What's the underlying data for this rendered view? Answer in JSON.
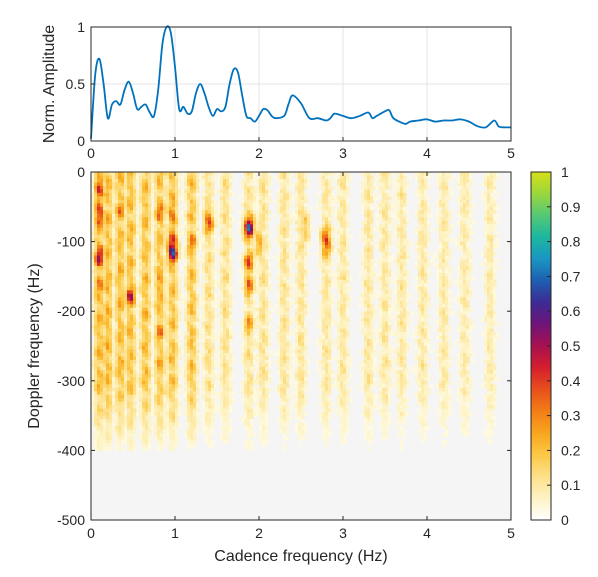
{
  "chart_data": [
    {
      "type": "line",
      "ylabel": "Norm. Amplitude",
      "xlabel": "",
      "xlim": [
        0,
        5
      ],
      "ylim": [
        0,
        1
      ],
      "x_ticks": [
        "0",
        "1",
        "2",
        "3",
        "4",
        "5"
      ],
      "y_ticks": [
        "0",
        "0.5",
        "1"
      ],
      "grid": true,
      "series": [
        {
          "color": "#0072bd",
          "x": [
            0,
            0.05,
            0.1,
            0.15,
            0.2,
            0.25,
            0.3,
            0.35,
            0.4,
            0.45,
            0.5,
            0.55,
            0.6,
            0.65,
            0.7,
            0.75,
            0.8,
            0.85,
            0.9,
            0.95,
            1.0,
            1.05,
            1.1,
            1.15,
            1.2,
            1.25,
            1.3,
            1.35,
            1.4,
            1.45,
            1.5,
            1.55,
            1.6,
            1.65,
            1.7,
            1.75,
            1.8,
            1.85,
            1.9,
            1.95,
            2.0,
            2.05,
            2.1,
            2.15,
            2.2,
            2.3,
            2.35,
            2.4,
            2.5,
            2.6,
            2.7,
            2.8,
            2.85,
            2.9,
            3.0,
            3.1,
            3.2,
            3.3,
            3.35,
            3.4,
            3.5,
            3.55,
            3.6,
            3.7,
            3.75,
            3.8,
            3.9,
            4.0,
            4.1,
            4.2,
            4.3,
            4.4,
            4.5,
            4.6,
            4.7,
            4.8,
            4.85,
            4.9,
            5.0
          ],
          "y": [
            0.02,
            0.58,
            0.72,
            0.5,
            0.2,
            0.32,
            0.35,
            0.32,
            0.45,
            0.52,
            0.42,
            0.28,
            0.3,
            0.32,
            0.25,
            0.22,
            0.45,
            0.85,
            1.0,
            0.95,
            0.65,
            0.28,
            0.3,
            0.24,
            0.26,
            0.42,
            0.5,
            0.42,
            0.3,
            0.22,
            0.28,
            0.26,
            0.3,
            0.5,
            0.63,
            0.6,
            0.4,
            0.22,
            0.2,
            0.17,
            0.22,
            0.28,
            0.27,
            0.22,
            0.2,
            0.22,
            0.32,
            0.4,
            0.33,
            0.2,
            0.2,
            0.18,
            0.2,
            0.24,
            0.22,
            0.2,
            0.22,
            0.25,
            0.2,
            0.22,
            0.26,
            0.27,
            0.2,
            0.16,
            0.15,
            0.17,
            0.18,
            0.19,
            0.17,
            0.18,
            0.18,
            0.19,
            0.17,
            0.13,
            0.12,
            0.18,
            0.13,
            0.12,
            0.12
          ]
        }
      ]
    },
    {
      "type": "heatmap",
      "xlabel": "Cadence frequency (Hz)",
      "ylabel": "Doppler frequency (Hz)",
      "xlim": [
        0,
        5
      ],
      "ylim": [
        -500,
        0
      ],
      "x_ticks": [
        "0",
        "1",
        "2",
        "3",
        "4",
        "5"
      ],
      "y_ticks": [
        "0",
        "-100",
        "-200",
        "-300",
        "-400",
        "-500"
      ],
      "colorbar": {
        "ticks": [
          "0",
          "0.1",
          "0.2",
          "0.3",
          "0.4",
          "0.5",
          "0.6",
          "0.7",
          "0.8",
          "0.9",
          "1"
        ],
        "range": [
          0,
          1
        ]
      },
      "colormap": [
        "#ffffff",
        "#fdf3c4",
        "#fde08a",
        "#fcc845",
        "#f9a51e",
        "#f27d16",
        "#e84f1c",
        "#d41e2e",
        "#a8114f",
        "#6f1479",
        "#3d2a94",
        "#1d5fb0",
        "#1a95c2",
        "#1cb79f",
        "#53c876",
        "#9ad73c",
        "#d6df19"
      ],
      "background_color": "#f5f5f5",
      "columns_hz": [
        0.1,
        0.2,
        0.35,
        0.47,
        0.65,
        0.82,
        0.97,
        1.2,
        1.4,
        1.6,
        1.88,
        2.05,
        2.3,
        2.5,
        2.8,
        3.0,
        3.3,
        3.5,
        3.7,
        3.95,
        4.2,
        4.45,
        4.75
      ],
      "hotspots": [
        {
          "x": 0.1,
          "y": -20,
          "value": 0.5
        },
        {
          "x": 0.1,
          "y": -60,
          "value": 0.55
        },
        {
          "x": 0.1,
          "y": -120,
          "value": 0.55
        },
        {
          "x": 0.1,
          "y": -160,
          "value": 0.35
        },
        {
          "x": 0.47,
          "y": -180,
          "value": 0.5
        },
        {
          "x": 0.35,
          "y": -55,
          "value": 0.35
        },
        {
          "x": 0.82,
          "y": -60,
          "value": 0.4
        },
        {
          "x": 0.82,
          "y": -160,
          "value": 0.35
        },
        {
          "x": 0.82,
          "y": -230,
          "value": 0.35
        },
        {
          "x": 0.82,
          "y": -270,
          "value": 0.3
        },
        {
          "x": 0.97,
          "y": -110,
          "value": 0.8
        },
        {
          "x": 0.97,
          "y": -60,
          "value": 0.4
        },
        {
          "x": 1.2,
          "y": -100,
          "value": 0.35
        },
        {
          "x": 1.4,
          "y": -70,
          "value": 0.45
        },
        {
          "x": 1.88,
          "y": -80,
          "value": 0.65
        },
        {
          "x": 1.88,
          "y": -130,
          "value": 0.4
        },
        {
          "x": 1.88,
          "y": -160,
          "value": 0.4
        },
        {
          "x": 1.88,
          "y": -220,
          "value": 0.3
        },
        {
          "x": 2.0,
          "y": -100,
          "value": 0.3
        },
        {
          "x": 2.8,
          "y": -100,
          "value": 0.5
        },
        {
          "x": 2.55,
          "y": -80,
          "value": 0.25
        }
      ]
    }
  ]
}
